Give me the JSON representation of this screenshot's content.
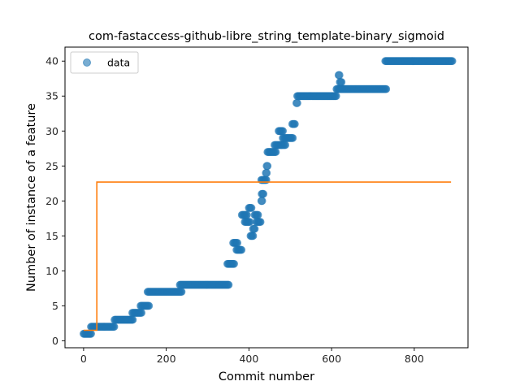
{
  "chart_data": {
    "type": "scatter",
    "title": "com-fastaccess-github-libre_string_template-binary_sigmoid",
    "xlabel": "Commit number",
    "ylabel": "Number of instance of a feature",
    "xlim": [
      -45,
      930
    ],
    "ylim": [
      -1,
      42
    ],
    "xticks": [
      0,
      200,
      400,
      600,
      800
    ],
    "yticks": [
      0,
      5,
      10,
      15,
      20,
      25,
      30,
      35,
      40
    ],
    "grid": false,
    "legend": {
      "position": "upper-left",
      "entries": [
        "data"
      ]
    },
    "colors": {
      "data": "#1f77b4",
      "fit": "#ff7f0e"
    },
    "series": [
      {
        "name": "data",
        "kind": "scatter",
        "segments": [
          {
            "x": [
              0,
              18
            ],
            "y": 1
          },
          {
            "x": [
              18,
              75
            ],
            "y": 2
          },
          {
            "x": [
              75,
              120
            ],
            "y": 3
          },
          {
            "x": [
              118,
              140
            ],
            "y": 4
          },
          {
            "x": [
              138,
              158
            ],
            "y": 5
          },
          {
            "x": [
              155,
              237
            ],
            "y": 7
          },
          {
            "x": [
              233,
              352
            ],
            "y": 8
          },
          {
            "x": [
              348,
              365
            ],
            "y": 11
          },
          {
            "x": [
              362,
              372
            ],
            "y": 14
          },
          {
            "x": [
              370,
              382
            ],
            "y": 13
          },
          {
            "x": [
              383,
              395
            ],
            "y": 18
          },
          {
            "x": [
              390,
              402
            ],
            "y": 17
          },
          {
            "x": [
              400,
              407
            ],
            "y": 19
          },
          {
            "x": [
              404,
              410
            ],
            "y": 15
          },
          {
            "x": [
              410,
              415
            ],
            "y": 16
          },
          {
            "x": [
              414,
              422
            ],
            "y": 18
          },
          {
            "x": [
              418,
              428
            ],
            "y": 17
          },
          {
            "x": [
              430,
              432
            ],
            "y": 20
          },
          {
            "x": [
              431,
              436
            ],
            "y": 21
          },
          {
            "x": [
              430,
              442
            ],
            "y": 23
          },
          {
            "x": [
              441,
              443
            ],
            "y": 24
          },
          {
            "x": [
              443,
              445
            ],
            "y": 25
          },
          {
            "x": [
              445,
              465
            ],
            "y": 27
          },
          {
            "x": [
              462,
              478
            ],
            "y": 28
          },
          {
            "x": [
              472,
              482
            ],
            "y": 30
          },
          {
            "x": [
              478,
              488
            ],
            "y": 28
          },
          {
            "x": [
              482,
              507
            ],
            "y": 29
          },
          {
            "x": [
              505,
              512
            ],
            "y": 31
          },
          {
            "x": [
              515,
              518
            ],
            "y": 34
          },
          {
            "x": [
              517,
              612
            ],
            "y": 35
          },
          {
            "x": [
              612,
              732
            ],
            "y": 36
          },
          {
            "x": [
              617,
              620
            ],
            "y": 38
          },
          {
            "x": [
              620,
              625
            ],
            "y": 37
          },
          {
            "x": [
              730,
              892
            ],
            "y": 40
          }
        ]
      },
      {
        "name": "",
        "kind": "line",
        "x": [
          0,
          32,
          32,
          889
        ],
        "y": [
          1.5,
          1.5,
          22.7,
          22.7
        ]
      }
    ]
  }
}
